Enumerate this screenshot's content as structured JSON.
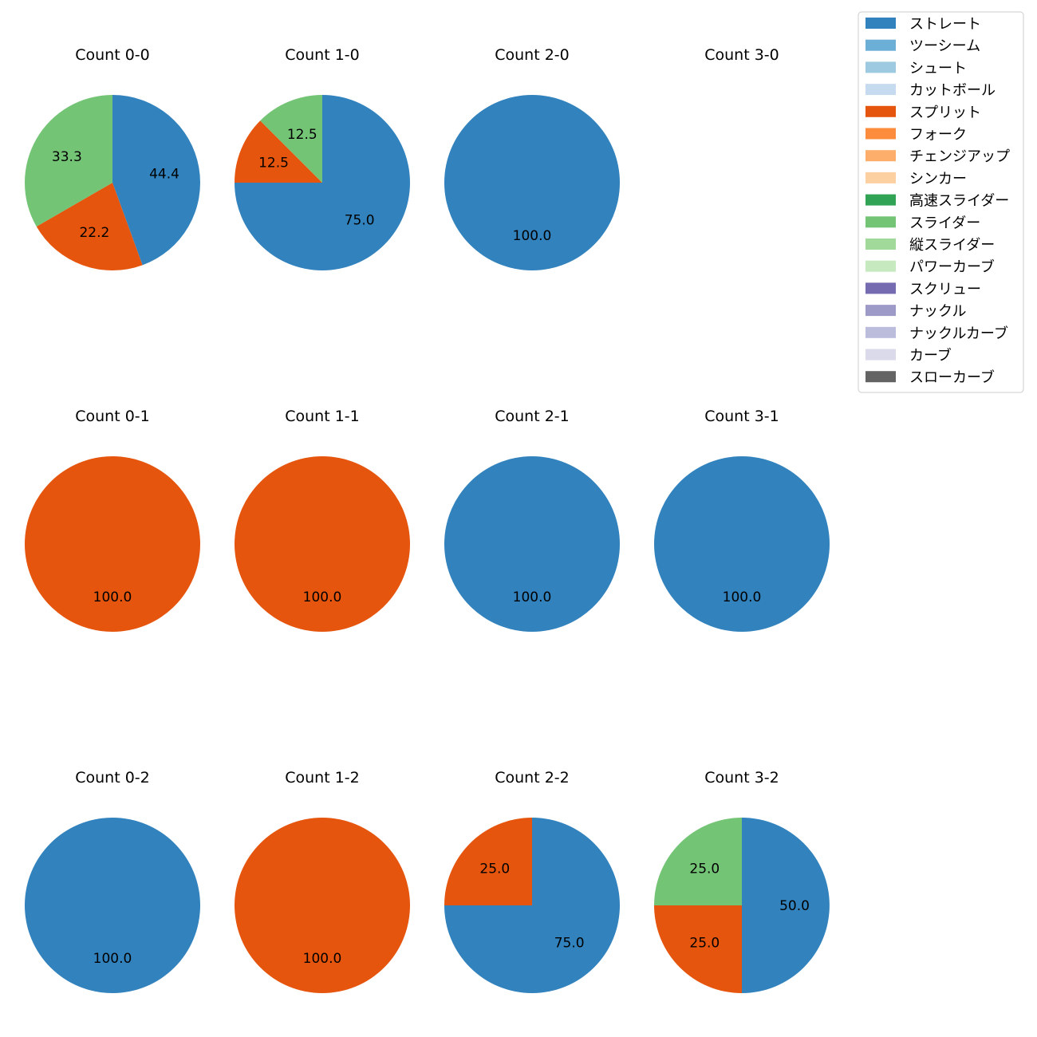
{
  "legend": {
    "items": [
      {
        "label": "ストレート",
        "color": "#3182bd"
      },
      {
        "label": "ツーシーム",
        "color": "#6baed6"
      },
      {
        "label": "シュート",
        "color": "#9ecae1"
      },
      {
        "label": "カットボール",
        "color": "#c6dbef"
      },
      {
        "label": "スプリット",
        "color": "#e6550d"
      },
      {
        "label": "フォーク",
        "color": "#fd8d3c"
      },
      {
        "label": "チェンジアップ",
        "color": "#fdae6b"
      },
      {
        "label": "シンカー",
        "color": "#fdd0a2"
      },
      {
        "label": "高速スライダー",
        "color": "#31a354"
      },
      {
        "label": "スライダー",
        "color": "#74c476"
      },
      {
        "label": "縦スライダー",
        "color": "#a1d99b"
      },
      {
        "label": "パワーカーブ",
        "color": "#c7e9c0"
      },
      {
        "label": "スクリュー",
        "color": "#756bb1"
      },
      {
        "label": "ナックル",
        "color": "#9e9ac8"
      },
      {
        "label": "ナックルカーブ",
        "color": "#bcbddc"
      },
      {
        "label": "カーブ",
        "color": "#dadaeb"
      },
      {
        "label": "スローカーブ",
        "color": "#636363"
      }
    ]
  },
  "chart_data": [
    {
      "type": "pie",
      "title": "Count 0-0",
      "slices": [
        {
          "category": "ストレート",
          "value": 44.4
        },
        {
          "category": "スプリット",
          "value": 22.2
        },
        {
          "category": "スライダー",
          "value": 33.3
        }
      ]
    },
    {
      "type": "pie",
      "title": "Count 1-0",
      "slices": [
        {
          "category": "ストレート",
          "value": 75.0
        },
        {
          "category": "スプリット",
          "value": 12.5
        },
        {
          "category": "スライダー",
          "value": 12.5
        }
      ]
    },
    {
      "type": "pie",
      "title": "Count 2-0",
      "slices": [
        {
          "category": "ストレート",
          "value": 100.0
        }
      ]
    },
    {
      "type": "pie",
      "title": "Count 3-0",
      "slices": []
    },
    {
      "type": "pie",
      "title": "Count 0-1",
      "slices": [
        {
          "category": "スプリット",
          "value": 100.0
        }
      ]
    },
    {
      "type": "pie",
      "title": "Count 1-1",
      "slices": [
        {
          "category": "スプリット",
          "value": 100.0
        }
      ]
    },
    {
      "type": "pie",
      "title": "Count 2-1",
      "slices": [
        {
          "category": "ストレート",
          "value": 100.0
        }
      ]
    },
    {
      "type": "pie",
      "title": "Count 3-1",
      "slices": [
        {
          "category": "ストレート",
          "value": 100.0
        }
      ]
    },
    {
      "type": "pie",
      "title": "Count 0-2",
      "slices": [
        {
          "category": "ストレート",
          "value": 100.0
        }
      ]
    },
    {
      "type": "pie",
      "title": "Count 1-2",
      "slices": [
        {
          "category": "スプリット",
          "value": 100.0
        }
      ]
    },
    {
      "type": "pie",
      "title": "Count 2-2",
      "slices": [
        {
          "category": "ストレート",
          "value": 75.0
        },
        {
          "category": "スプリット",
          "value": 25.0
        }
      ]
    },
    {
      "type": "pie",
      "title": "Count 3-2",
      "slices": [
        {
          "category": "ストレート",
          "value": 50.0
        },
        {
          "category": "スプリット",
          "value": 25.0
        },
        {
          "category": "スライダー",
          "value": 25.0
        }
      ]
    }
  ]
}
